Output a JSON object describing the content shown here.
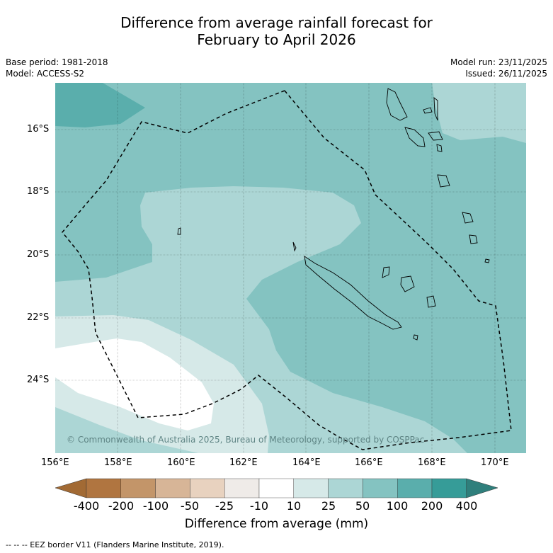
{
  "header": {
    "title_line1": "Difference from average rainfall forecast for",
    "title_line2": "February to April 2026",
    "base_period": "Base period: 1981-2018",
    "model": "Model: ACCESS-S2",
    "model_run": "Model run: 23/11/2025",
    "issued": "Issued: 26/11/2025"
  },
  "map": {
    "lat_labels": [
      "16°S",
      "18°S",
      "20°S",
      "22°S",
      "24°S"
    ],
    "lon_labels": [
      "156°E",
      "158°E",
      "160°E",
      "162°E",
      "164°E",
      "166°E",
      "168°E",
      "170°E"
    ],
    "credit": "© Commonwealth of Australia 2025, Bureau of Meteorology, supported by COSPPac"
  },
  "colorbar": {
    "labels": [
      "-400",
      "-200",
      "-100",
      "-50",
      "-25",
      "-10",
      "10",
      "25",
      "50",
      "100",
      "200",
      "400"
    ],
    "colors": [
      "#a26a34",
      "#b07540",
      "#c39569",
      "#d7b597",
      "#e8d2bf",
      "#efebe8",
      "#ffffff",
      "#d6e9e8",
      "#acd6d5",
      "#84c3c1",
      "#5aaeac",
      "#369c98",
      "#2f7f7c"
    ],
    "title": "Difference from average (mm)"
  },
  "footer": {
    "eez_note": "--  --  -- EEZ border V11 (Flanders Marine Institute, 2019)."
  }
}
